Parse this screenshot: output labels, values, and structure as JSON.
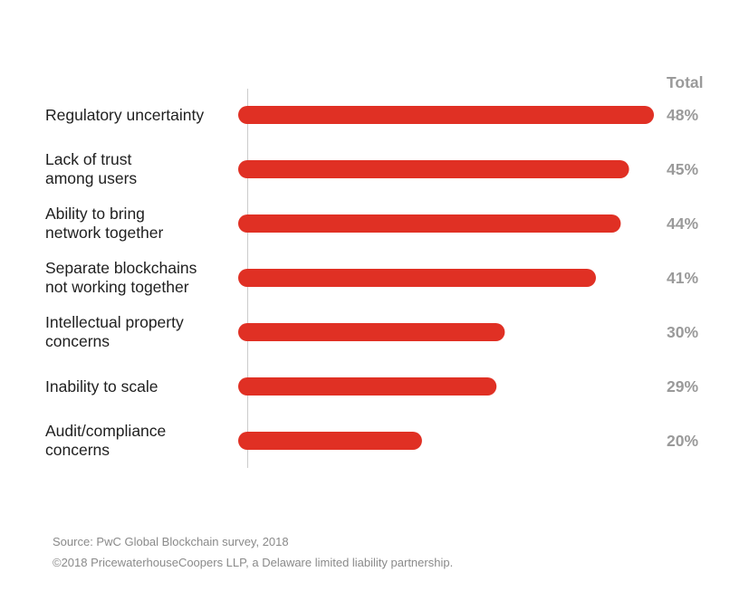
{
  "chart_data": {
    "type": "bar",
    "orientation": "horizontal",
    "value_header": "Total",
    "categories": [
      "Regulatory uncertainty",
      "Lack of trust\namong users",
      "Ability to bring\nnetwork together",
      "Separate blockchains\nnot working together",
      "Intellectual property\nconcerns",
      "Inability to scale",
      "Audit/compliance\nconcerns"
    ],
    "values": [
      48,
      45,
      44,
      41,
      30,
      29,
      20
    ],
    "value_labels": [
      "48%",
      "45%",
      "44%",
      "41%",
      "30%",
      "29%",
      "20%"
    ],
    "xlim": [
      0,
      48
    ],
    "grid": false,
    "bar_color": "#e03024"
  },
  "footer": {
    "source": "Source: PwC Global Blockchain survey, 2018",
    "copyright": "©2018 PricewaterhouseCoopers LLP, a Delaware limited liability partnership."
  }
}
